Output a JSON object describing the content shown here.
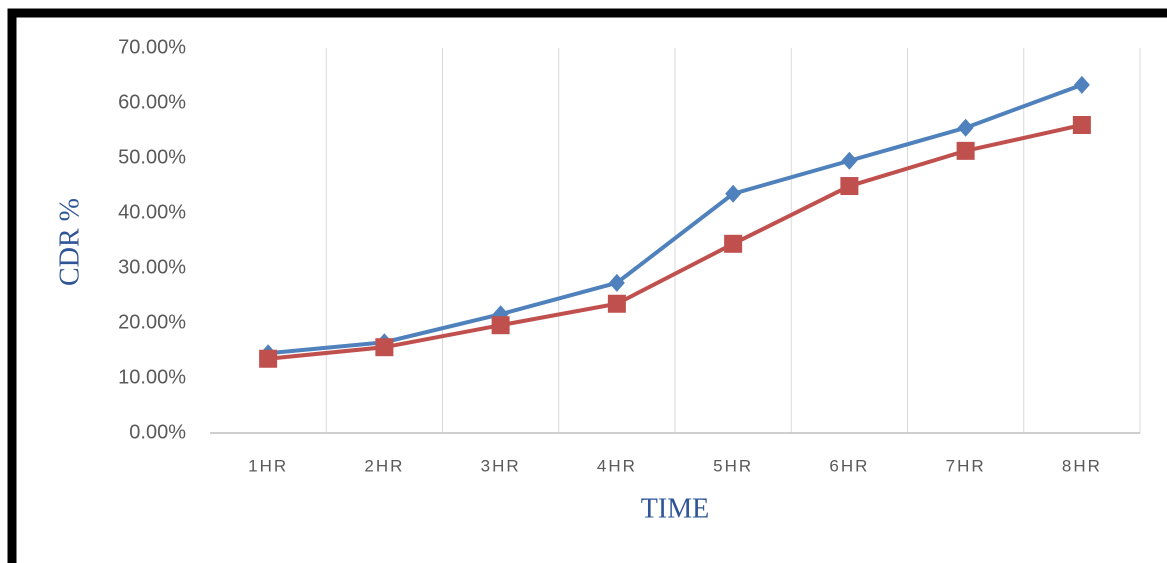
{
  "chart_data": {
    "type": "line",
    "x_label": "TIME",
    "y_label": "CDR %",
    "categories": [
      "1HR",
      "2HR",
      "3HR",
      "4HR",
      "5HR",
      "6HR",
      "7HR",
      "8HR"
    ],
    "series": [
      {
        "color": "#4f81bd",
        "marker": "diamond",
        "values": [
          14.5,
          16.5,
          21.6,
          27.3,
          43.5,
          49.5,
          55.5,
          63.3
        ]
      },
      {
        "color": "#c0504d",
        "marker": "square",
        "values": [
          13.5,
          15.6,
          19.6,
          23.5,
          34.4,
          44.9,
          51.3,
          56.0
        ]
      }
    ],
    "ylim": [
      0,
      70
    ],
    "yticks": [
      {
        "value": 0,
        "label": "0.00%"
      },
      {
        "value": 10,
        "label": "10.00%"
      },
      {
        "value": 20,
        "label": "20.00%"
      },
      {
        "value": 30,
        "label": "30.00%"
      },
      {
        "value": 40,
        "label": "40.00%"
      },
      {
        "value": 50,
        "label": "50.00%"
      },
      {
        "value": 60,
        "label": "60.00%"
      },
      {
        "value": 70,
        "label": "70.00%"
      }
    ],
    "grid": "vertical"
  }
}
